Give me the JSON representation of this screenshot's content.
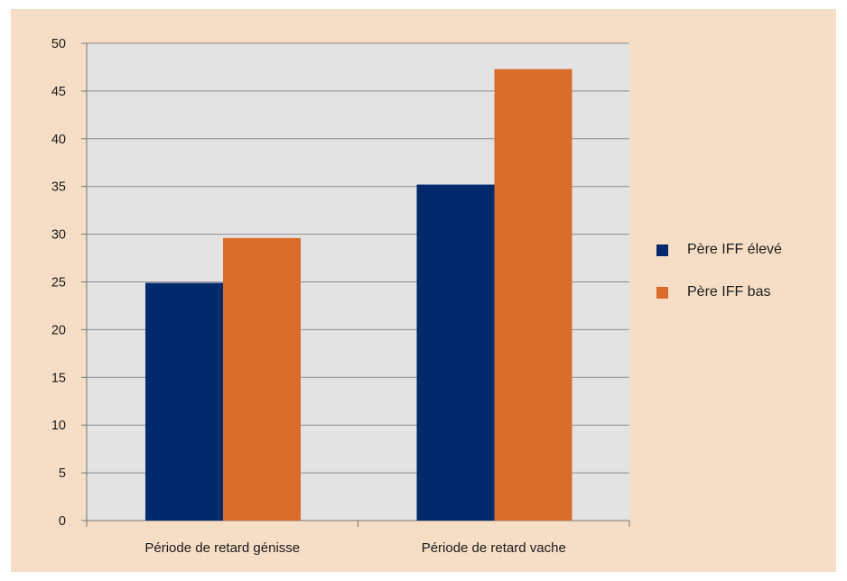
{
  "chart_data": {
    "type": "bar",
    "categories": [
      "Période de retard génisse",
      "Période de retard vache"
    ],
    "series": [
      {
        "name": "Père IFF élevé",
        "color": "#002a6b",
        "values": [
          24.9,
          35.2
        ]
      },
      {
        "name": "Père IFF bas",
        "color": "#d96c2b",
        "values": [
          29.6,
          47.3
        ]
      }
    ],
    "ylim": [
      0,
      50
    ],
    "yticks": [
      0,
      5,
      10,
      15,
      20,
      25,
      30,
      35,
      40,
      45,
      50
    ],
    "grid": true,
    "legend_position": "right",
    "title": "",
    "xlabel": "",
    "ylabel": ""
  },
  "colors": {
    "panel_background": "#f6dec6",
    "plot_background": "#e3e3e3",
    "gridline": "#8c8c8c"
  }
}
